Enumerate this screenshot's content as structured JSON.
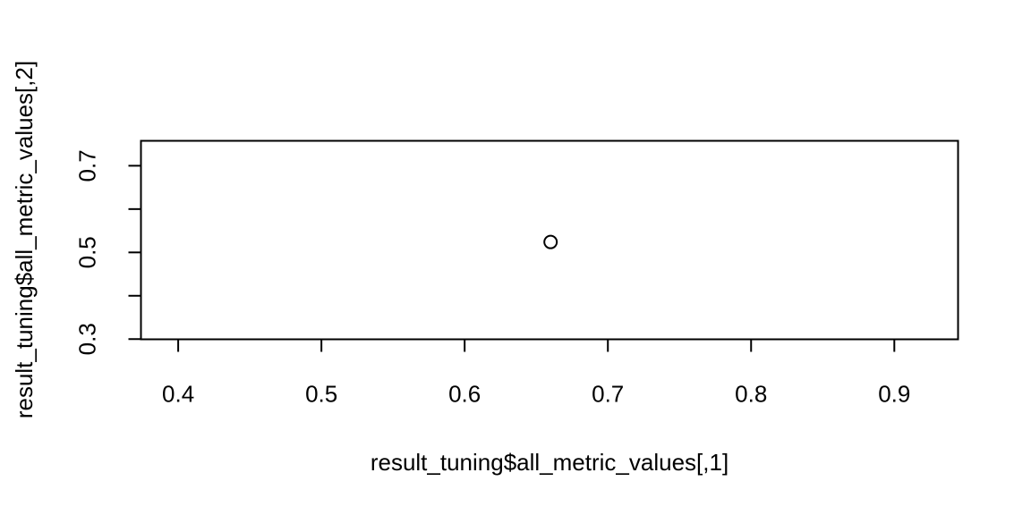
{
  "chart_data": {
    "type": "scatter",
    "title": "",
    "xlabel": "result_tuning$all_metric_values[,1]",
    "ylabel": "result_tuning$all_metric_values[,2]",
    "xlim": [
      0.374,
      0.9445
    ],
    "ylim": [
      0.2995,
      0.7575
    ],
    "x_ticks": [
      0.4,
      0.5,
      0.6,
      0.7,
      0.8,
      0.9
    ],
    "x_tick_labels": [
      "0.4",
      "0.5",
      "0.6",
      "0.7",
      "0.8",
      "0.9"
    ],
    "y_ticks": [
      0.3,
      0.4,
      0.5,
      0.6,
      0.7
    ],
    "y_tick_labels": [
      "0.3",
      "",
      "0.5",
      "",
      "0.7"
    ],
    "grid": false,
    "points": [
      {
        "x": 0.66,
        "y": 0.524
      }
    ]
  }
}
